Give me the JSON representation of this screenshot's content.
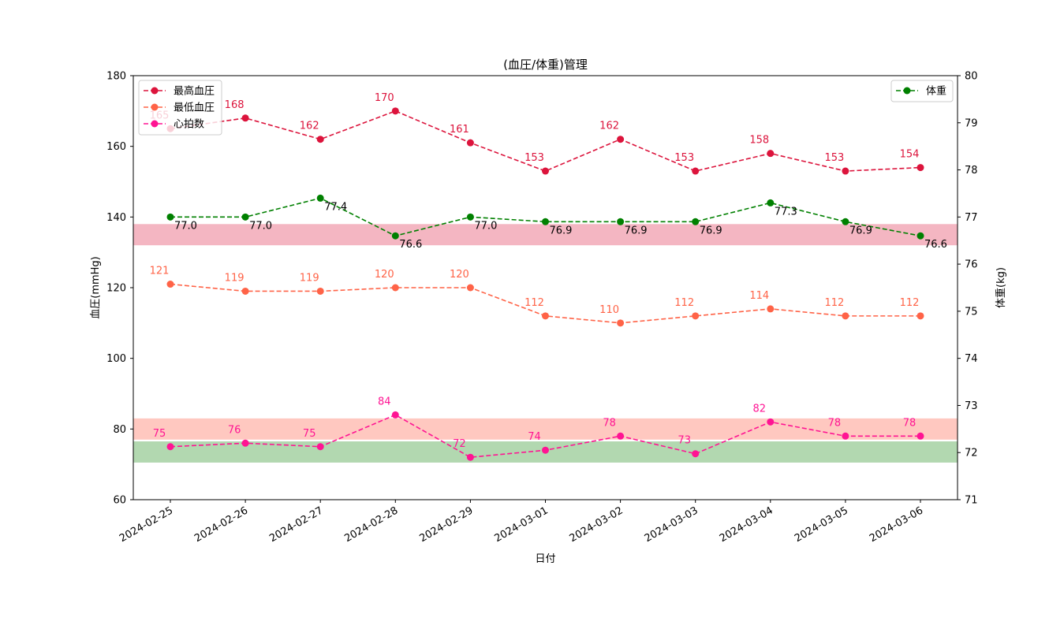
{
  "chart_data": {
    "type": "line",
    "title": "(血圧/体重)管理",
    "xlabel": "日付",
    "ylabel_left": "血圧(mmHg)",
    "ylabel_right": "体重(kg)",
    "categories": [
      "2024-02-25",
      "2024-02-26",
      "2024-02-27",
      "2024-02-28",
      "2024-02-29",
      "2024-03-01",
      "2024-03-02",
      "2024-03-03",
      "2024-03-04",
      "2024-03-05",
      "2024-03-06"
    ],
    "ylim_left": [
      60,
      180
    ],
    "yticks_left": [
      60,
      80,
      100,
      120,
      140,
      160,
      180
    ],
    "ylim_right": [
      71,
      80
    ],
    "yticks_right": [
      71,
      72,
      73,
      74,
      75,
      76,
      77,
      78,
      79,
      80
    ],
    "grid": false,
    "bands": [
      {
        "axis": "left",
        "from": 132,
        "to": 138,
        "color": "#f4b6c2"
      },
      {
        "axis": "left",
        "from": 77,
        "to": 83,
        "color": "#ffc8c0"
      },
      {
        "axis": "left",
        "from": 70.5,
        "to": 76.5,
        "color": "#b2d8b0"
      }
    ],
    "series": [
      {
        "name": "最高血圧",
        "axis": "left",
        "color": "#dc143c",
        "label_decimals": 0,
        "label_position": "above",
        "values": [
          165,
          168,
          162,
          170,
          161,
          153,
          162,
          153,
          158,
          153,
          154
        ]
      },
      {
        "name": "最低血圧",
        "axis": "left",
        "color": "#ff6347",
        "label_decimals": 0,
        "label_position": "above",
        "values": [
          121,
          119,
          119,
          120,
          120,
          112,
          110,
          112,
          114,
          112,
          112
        ]
      },
      {
        "name": "心拍数",
        "axis": "left",
        "color": "#ff1493",
        "label_decimals": 0,
        "label_position": "above",
        "values": [
          75,
          76,
          75,
          84,
          72,
          74,
          78,
          73,
          82,
          78,
          78
        ]
      },
      {
        "name": "体重",
        "axis": "right",
        "color": "#008000",
        "label_decimals": 1,
        "label_position": "below-right",
        "label_color": "#000000",
        "values": [
          77.0,
          77.0,
          77.4,
          76.6,
          77.0,
          76.9,
          76.9,
          76.9,
          77.3,
          76.9,
          76.6
        ]
      }
    ],
    "legend_left": {
      "placement": "upper-left",
      "series": [
        "最高血圧",
        "最低血圧",
        "心拍数"
      ]
    },
    "legend_right": {
      "placement": "upper-right",
      "series": [
        "体重"
      ]
    }
  }
}
